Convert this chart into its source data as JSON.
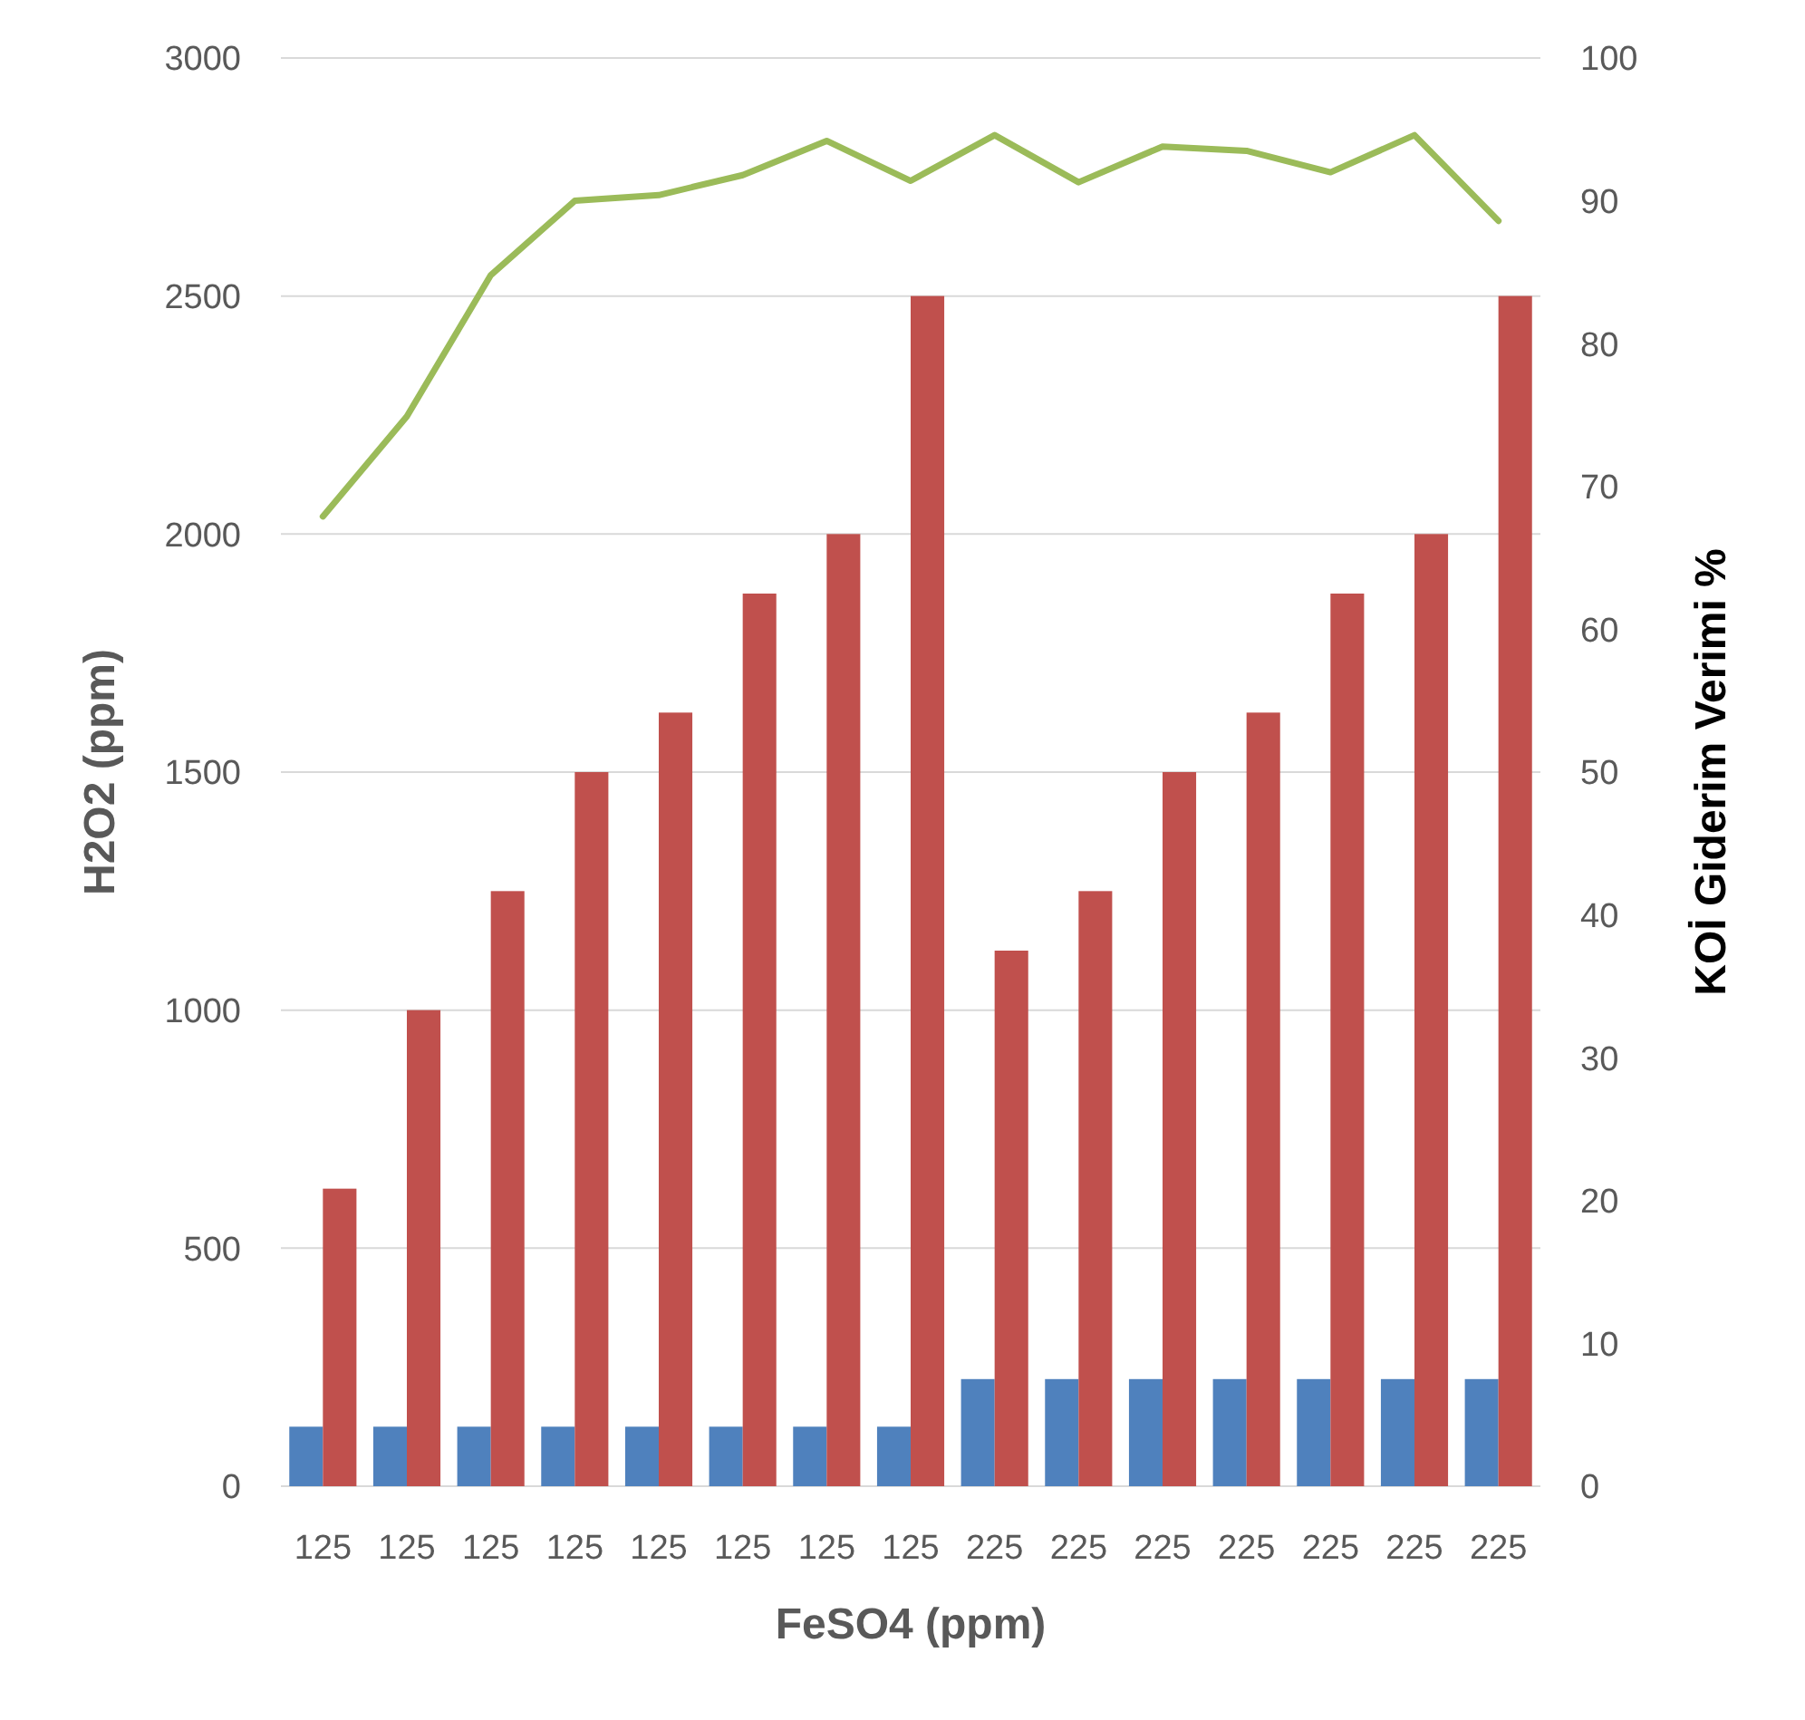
{
  "chart_data": {
    "type": "bar",
    "xlabel": "FeSO4 (ppm)",
    "ylabel": "H2O2 (ppm)",
    "y2label": "KOİ Giderim Verimi %",
    "categories": [
      "125",
      "125",
      "125",
      "125",
      "125",
      "125",
      "125",
      "125",
      "225",
      "225",
      "225",
      "225",
      "225",
      "225",
      "225"
    ],
    "series": [
      {
        "color": "#4f81bd",
        "values": [
          125,
          125,
          125,
          125,
          125,
          125,
          125,
          125,
          225,
          225,
          225,
          225,
          225,
          225,
          225
        ]
      },
      {
        "color": "#c0504d",
        "values": [
          625,
          1000,
          1250,
          1500,
          1625,
          1875,
          2000,
          2500,
          1125,
          1250,
          1500,
          1625,
          1875,
          2000,
          2500
        ]
      },
      {
        "type": "line",
        "axis": "y2",
        "color": "#9bbb59",
        "values": [
          67.9,
          74.9,
          84.8,
          90.0,
          90.4,
          91.8,
          94.2,
          91.4,
          94.6,
          91.3,
          93.8,
          93.5,
          92.0,
          94.6,
          88.6
        ]
      }
    ],
    "ylim": [
      0,
      3000
    ],
    "yticks": [
      0,
      500,
      1000,
      1500,
      2000,
      2500,
      3000
    ],
    "y2lim": [
      0,
      100
    ],
    "y2ticks": [
      0,
      10,
      20,
      30,
      40,
      50,
      60,
      70,
      80,
      90,
      100
    ],
    "grid": "y",
    "marker": "none",
    "line_style": "solid"
  }
}
